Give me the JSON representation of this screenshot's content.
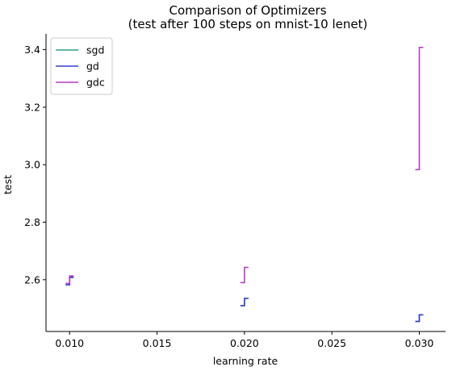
{
  "chart_data": {
    "type": "line",
    "title": "Comparison of Optimizers",
    "subtitle": "(test after 100 steps on mnist-10 lenet)",
    "xlabel": "learning rate",
    "ylabel": "test",
    "xlim": [
      0.00865,
      0.0315
    ],
    "ylim": [
      2.42,
      3.455
    ],
    "xticks": [
      0.01,
      0.015,
      0.02,
      0.025,
      0.03
    ],
    "xtick_labels": [
      "0.010",
      "0.015",
      "0.020",
      "0.025",
      "0.030"
    ],
    "yticks": [
      2.6,
      2.8,
      3.0,
      3.2,
      3.4
    ],
    "ytick_labels": [
      "2.6",
      "2.8",
      "3.0",
      "3.2",
      "3.4"
    ],
    "legend_position": "top-left",
    "series": [
      {
        "name": "sgd",
        "color": "#2ca089",
        "values": [
          {
            "x": 0.01,
            "y_low": 2.582,
            "y_high": 2.608
          },
          {
            "x": 0.02,
            "y_low": 2.51,
            "y_high": 2.535
          },
          {
            "x": 0.03,
            "y_low": 2.455,
            "y_high": 2.478
          }
        ]
      },
      {
        "name": "gd",
        "color": "#3b3fd8",
        "values": [
          {
            "x": 0.01,
            "y_low": 2.582,
            "y_high": 2.608
          },
          {
            "x": 0.02,
            "y_low": 2.51,
            "y_high": 2.535
          },
          {
            "x": 0.03,
            "y_low": 2.455,
            "y_high": 2.478
          }
        ]
      },
      {
        "name": "gdc",
        "color": "#b53cc4",
        "values": [
          {
            "x": 0.01,
            "y_low": 2.587,
            "y_high": 2.613
          },
          {
            "x": 0.02,
            "y_low": 2.59,
            "y_high": 2.643
          },
          {
            "x": 0.03,
            "y_low": 2.983,
            "y_high": 3.408
          }
        ]
      }
    ]
  }
}
